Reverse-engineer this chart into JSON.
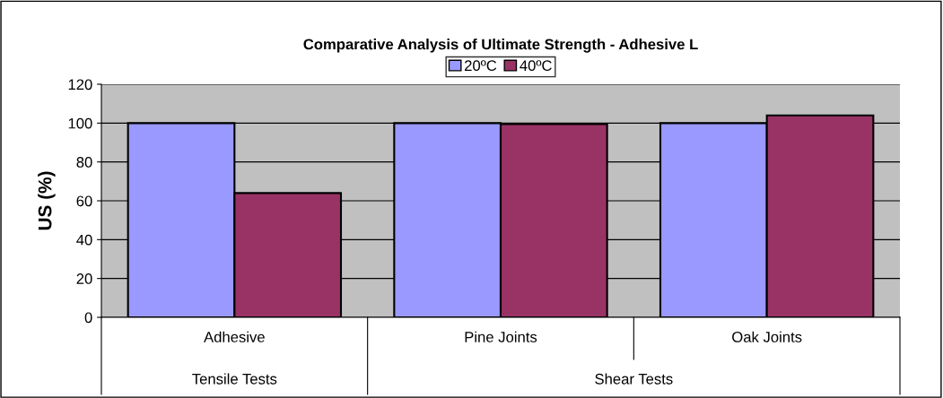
{
  "chart_data": {
    "type": "bar",
    "title": "Comparative Analysis of Ultimate Strength - Adhesive L",
    "ylabel": "US (%)",
    "categories": [
      "Adhesive",
      "Pine Joints",
      "Oak Joints"
    ],
    "series": [
      {
        "name": "20ºC",
        "color": "#9999ff",
        "values": [
          100,
          100,
          100
        ]
      },
      {
        "name": "40ºC",
        "color": "#993366",
        "values": [
          64,
          99.5,
          104
        ]
      }
    ],
    "annotations": [
      "Tensile Tests",
      "Shear Tests"
    ],
    "ylim": [
      0,
      120
    ],
    "yticks": [
      0,
      20,
      40,
      60,
      80,
      100,
      120
    ],
    "grid": "y",
    "legend": "top"
  }
}
